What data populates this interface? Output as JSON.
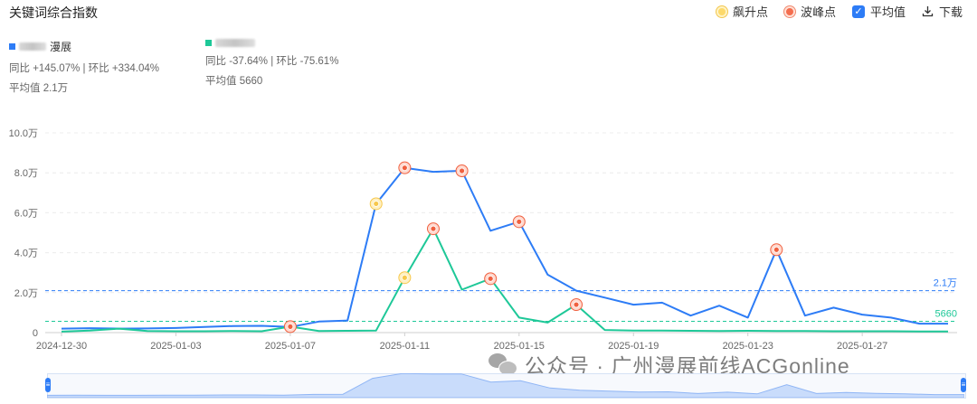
{
  "header": {
    "title": "关键词综合指数",
    "rise_label": "飙升点",
    "peak_label": "波峰点",
    "avg_label": "平均值",
    "avg_checked": "✓",
    "download_label": "下载"
  },
  "legend": [
    {
      "name": "漫展",
      "color": "#2d7cf6",
      "stat": "同比 +145.07% | 环比 +334.04%",
      "avg": "平均值 2.1万"
    },
    {
      "name": "",
      "color": "#1ec898",
      "stat": "同比 -37.64% | 环比 -75.61%",
      "avg": "平均值 5660"
    }
  ],
  "watermark": "公众号 · 广州漫展前线ACGonline",
  "colors": {
    "blue": "#2d7cf6",
    "green": "#1ec898",
    "rise": "#f3c74f",
    "peak": "#f46d4e"
  },
  "chart_data": {
    "type": "line",
    "x_start": "2024-12-30",
    "x": [
      "2024-12-30",
      "2024-12-31",
      "2025-01-01",
      "2025-01-02",
      "2025-01-03",
      "2025-01-04",
      "2025-01-05",
      "2025-01-06",
      "2025-01-07",
      "2025-01-08",
      "2025-01-09",
      "2025-01-10",
      "2025-01-11",
      "2025-01-12",
      "2025-01-13",
      "2025-01-14",
      "2025-01-15",
      "2025-01-16",
      "2025-01-17",
      "2025-01-18",
      "2025-01-19",
      "2025-01-20",
      "2025-01-21",
      "2025-01-22",
      "2025-01-23",
      "2025-01-24",
      "2025-01-25",
      "2025-01-26",
      "2025-01-27",
      "2025-01-28",
      "2025-01-29",
      "2025-01-30"
    ],
    "x_ticks": [
      "2024-12-30",
      "2025-01-03",
      "2025-01-07",
      "2025-01-11",
      "2025-01-15",
      "2025-01-19",
      "2025-01-23",
      "2025-01-27"
    ],
    "y_ticks": [
      0,
      20000,
      40000,
      60000,
      80000,
      100000
    ],
    "y_tick_labels": [
      "0",
      "2.0万",
      "4.0万",
      "6.0万",
      "8.0万",
      "10.0万"
    ],
    "ylim": [
      0,
      100000
    ],
    "grid": true,
    "series": [
      {
        "name": "漫展",
        "values": [
          2000,
          2200,
          2000,
          2100,
          2300,
          2800,
          3300,
          3400,
          2800,
          5500,
          6000,
          64500,
          82500,
          80500,
          81000,
          51000,
          55500,
          29000,
          21000,
          17500,
          14000,
          15000,
          8500,
          13500,
          7500,
          41500,
          8500,
          12500,
          9000,
          7500,
          4500,
          4500
        ],
        "rise_idx": [
          11
        ],
        "peak_idx": [
          12,
          14,
          16,
          25
        ]
      },
      {
        "name": "",
        "values": [
          500,
          1000,
          2000,
          800,
          700,
          700,
          800,
          700,
          3000,
          800,
          900,
          1000,
          27500,
          52000,
          21500,
          27000,
          7500,
          5000,
          14000,
          1300,
          1000,
          1000,
          900,
          800,
          900,
          800,
          800,
          700,
          700,
          700,
          600,
          600
        ],
        "rise_idx": [
          12
        ],
        "peak_idx": [
          8,
          13,
          15,
          18
        ]
      }
    ],
    "avg_lines": [
      {
        "label": "2.1万",
        "value": 21000
      },
      {
        "label": "5660",
        "value": 5660
      }
    ]
  }
}
